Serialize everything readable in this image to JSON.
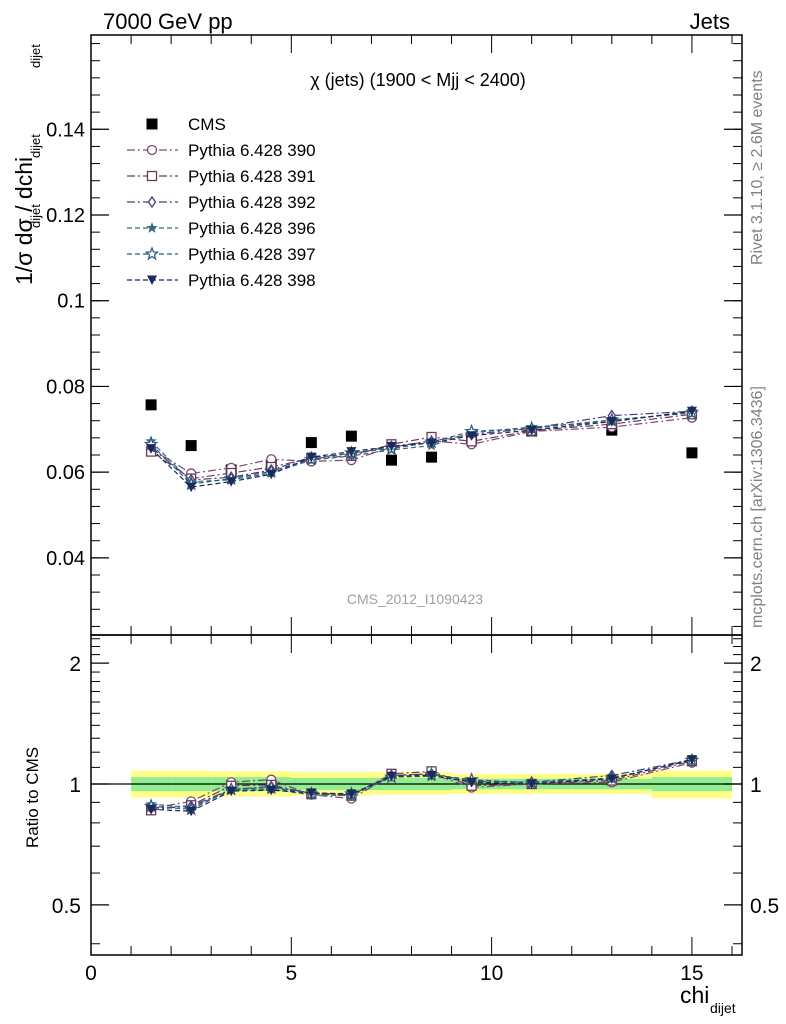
{
  "header": {
    "left": "7000 GeV pp",
    "right": "Jets"
  },
  "side_labels": {
    "rivet": "Rivet 3.1.10, ≥ 2.6M events",
    "mcplots": "mcplots.cern.ch [arXiv:1306.3436]"
  },
  "chart_data": [
    {
      "type": "scatter",
      "panel": "main",
      "title": "χ (jets) (1900 < Mjj < 2400)",
      "watermark": "CMS_2012_I1090423",
      "ylabel": "1/σ dσ / dchi",
      "ylabel_sub1": "dijet",
      "ylabel_sub2": "dijet",
      "ylabel_sub3": "dijet",
      "xlim": [
        0,
        16.25
      ],
      "ylim": [
        0.022,
        0.162
      ],
      "yticks": [
        0.04,
        0.06,
        0.08,
        0.1,
        0.12,
        0.14
      ],
      "ytick_labels": [
        "0.04",
        "0.06",
        "0.08",
        "0.1",
        "0.12",
        "0.14"
      ],
      "legend_position": "top-left",
      "x": [
        1.5,
        2.5,
        3.5,
        4.5,
        5.5,
        6.5,
        7.5,
        8.5,
        9.5,
        11,
        13,
        15
      ],
      "series": [
        {
          "name": "CMS",
          "marker": "filled-square",
          "color": "#000000",
          "line": "none",
          "values": [
            0.0757,
            0.0662,
            0.0605,
            0.0616,
            0.0669,
            0.0684,
            0.0628,
            0.0635,
            0.0678,
            0.0696,
            0.0698,
            0.0645
          ]
        },
        {
          "name": "Pythia 6.428 390",
          "marker": "open-circle",
          "color": "#7a4a78",
          "dash": "8,3,2,3",
          "values": [
            0.0655,
            0.0597,
            0.061,
            0.063,
            0.0625,
            0.0628,
            0.0658,
            0.0673,
            0.0665,
            0.0695,
            0.0705,
            0.0727
          ]
        },
        {
          "name": "Pythia 6.428 391",
          "marker": "open-square",
          "color": "#6e3a5a",
          "dash": "8,3,2,3",
          "values": [
            0.0648,
            0.0585,
            0.0598,
            0.0612,
            0.0632,
            0.0638,
            0.0665,
            0.0682,
            0.0672,
            0.0697,
            0.0712,
            0.0735
          ]
        },
        {
          "name": "Pythia 6.428 392",
          "marker": "open-diamond",
          "color": "#4a3a7e",
          "dash": "8,3,2,3",
          "values": [
            0.0658,
            0.0582,
            0.0588,
            0.0605,
            0.0635,
            0.0642,
            0.066,
            0.0672,
            0.0688,
            0.0702,
            0.0732,
            0.0742
          ]
        },
        {
          "name": "Pythia 6.428 396",
          "marker": "filled-star",
          "color": "#3a6a7e",
          "dash": "5,3",
          "values": [
            0.0672,
            0.0578,
            0.0582,
            0.0598,
            0.0628,
            0.0638,
            0.0652,
            0.0662,
            0.0692,
            0.0705,
            0.0718,
            0.0742
          ]
        },
        {
          "name": "Pythia 6.428 397",
          "marker": "open-star",
          "color": "#2a5a78",
          "dash": "5,3",
          "values": [
            0.0665,
            0.0572,
            0.0585,
            0.0602,
            0.063,
            0.0645,
            0.0655,
            0.067,
            0.0695,
            0.0702,
            0.0722,
            0.0738
          ]
        },
        {
          "name": "Pythia 6.428 398",
          "marker": "filled-triangle-down",
          "color": "#1a2a5a",
          "dash": "5,3",
          "values": [
            0.0655,
            0.0565,
            0.0578,
            0.0595,
            0.0635,
            0.0648,
            0.066,
            0.0668,
            0.0685,
            0.0698,
            0.0718,
            0.0742
          ]
        }
      ]
    },
    {
      "type": "scatter",
      "panel": "ratio",
      "ylabel": "Ratio to CMS",
      "xlabel": "chi",
      "xlabel_sub": "dijet",
      "xlim": [
        0,
        16.25
      ],
      "ylim": [
        0.375,
        2.35
      ],
      "log_y": true,
      "xticks": [
        0,
        5,
        10,
        15
      ],
      "xtick_labels": [
        "0",
        "5",
        "10",
        "15"
      ],
      "yticks": [
        0.5,
        1,
        2
      ],
      "ytick_labels": [
        "0.5",
        "1",
        "2"
      ],
      "bands": {
        "x_edges": [
          1,
          2,
          3,
          4,
          5,
          6,
          7,
          8,
          9,
          10,
          12,
          14,
          16
        ],
        "stat_low": [
          0.96,
          0.96,
          0.96,
          0.96,
          0.965,
          0.965,
          0.965,
          0.965,
          0.97,
          0.97,
          0.97,
          0.96
        ],
        "stat_high": [
          1.04,
          1.04,
          1.04,
          1.04,
          1.035,
          1.035,
          1.035,
          1.035,
          1.03,
          1.03,
          1.03,
          1.04
        ],
        "total_low": [
          0.925,
          0.925,
          0.93,
          0.93,
          0.935,
          0.935,
          0.94,
          0.94,
          0.945,
          0.945,
          0.945,
          0.92
        ],
        "total_high": [
          1.08,
          1.08,
          1.075,
          1.075,
          1.07,
          1.07,
          1.07,
          1.07,
          1.06,
          1.06,
          1.06,
          1.08
        ],
        "stat_color": "#90ee90",
        "total_color": "#ffff88"
      },
      "x": [
        1.5,
        2.5,
        3.5,
        4.5,
        5.5,
        6.5,
        7.5,
        8.5,
        9.5,
        11,
        13,
        15
      ],
      "series": [
        {
          "name": "Pythia 6.428 390",
          "values": [
            0.87,
            0.905,
            1.01,
            1.025,
            0.94,
            0.92,
            1.05,
            1.06,
            0.98,
            1.0,
            1.01,
            1.13
          ]
        },
        {
          "name": "Pythia 6.428 391",
          "values": [
            0.86,
            0.885,
            0.99,
            0.995,
            0.945,
            0.935,
            1.06,
            1.075,
            0.99,
            1.0,
            1.02,
            1.14
          ]
        },
        {
          "name": "Pythia 6.428 392",
          "values": [
            0.87,
            0.88,
            0.97,
            0.985,
            0.95,
            0.94,
            1.05,
            1.06,
            1.015,
            1.01,
            1.05,
            1.15
          ]
        },
        {
          "name": "Pythia 6.428 396",
          "values": [
            0.89,
            0.875,
            0.965,
            0.97,
            0.94,
            0.935,
            1.04,
            1.045,
            1.02,
            1.01,
            1.03,
            1.15
          ]
        },
        {
          "name": "Pythia 6.428 397",
          "values": [
            0.88,
            0.865,
            0.97,
            0.98,
            0.945,
            0.945,
            1.04,
            1.055,
            1.025,
            1.005,
            1.035,
            1.145
          ]
        },
        {
          "name": "Pythia 6.428 398",
          "values": [
            0.865,
            0.855,
            0.96,
            0.965,
            0.95,
            0.945,
            1.045,
            1.05,
            1.01,
            1.0,
            1.03,
            1.15
          ]
        }
      ]
    }
  ]
}
